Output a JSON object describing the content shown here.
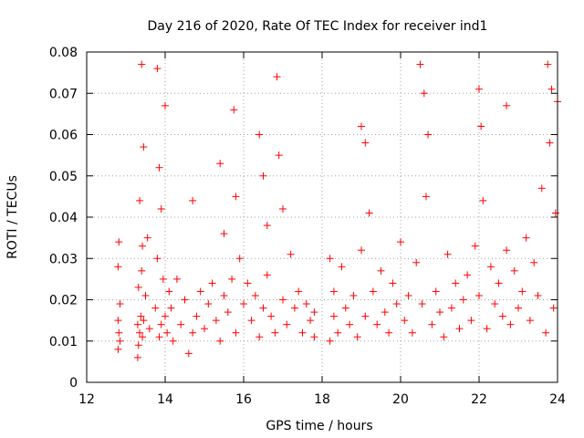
{
  "chart_data": {
    "type": "scatter",
    "title": "Day 216 of 2020, Rate Of TEC Index for receiver ind1",
    "xlabel": "GPS time / hours",
    "ylabel": "ROTI / TECUs",
    "xlim": [
      12,
      24
    ],
    "ylim": [
      0,
      0.08
    ],
    "xticks": [
      "12",
      "14",
      "16",
      "18",
      "20",
      "22",
      "24"
    ],
    "yticks": [
      "0",
      "0.01",
      "0.02",
      "0.03",
      "0.04",
      "0.05",
      "0.06",
      "0.07",
      "0.08"
    ],
    "grid": true,
    "marker": "+",
    "colors": {
      "points": "#ff0000"
    },
    "series": [
      {
        "x": [
          12.8,
          12.8,
          12.8,
          12.82,
          12.82,
          12.85,
          12.85,
          13.3,
          13.3,
          13.32,
          13.32,
          13.35,
          13.35,
          13.38,
          13.4,
          13.4,
          13.42,
          13.42,
          13.45,
          13.45,
          13.5,
          13.55,
          13.6,
          13.75,
          13.8,
          13.8,
          13.85,
          13.85,
          13.9,
          13.9,
          13.95,
          14.0,
          14.0,
          14.05,
          14.1,
          14.15,
          14.2,
          14.3,
          14.4,
          14.5,
          14.6,
          14.7,
          14.7,
          14.8,
          14.9,
          15.0,
          15.1,
          15.2,
          15.3,
          15.4,
          15.4,
          15.5,
          15.5,
          15.6,
          15.7,
          15.75,
          15.8,
          15.8,
          15.9,
          16.0,
          16.1,
          16.2,
          16.3,
          16.4,
          16.4,
          16.5,
          16.5,
          16.6,
          16.6,
          16.7,
          16.8,
          16.85,
          16.9,
          17.0,
          17.0,
          17.1,
          17.2,
          17.3,
          17.4,
          17.5,
          17.6,
          17.7,
          17.8,
          17.8,
          18.2,
          18.2,
          18.3,
          18.3,
          18.4,
          18.5,
          18.6,
          18.7,
          18.8,
          18.9,
          19.0,
          19.0,
          19.1,
          19.1,
          19.2,
          19.3,
          19.4,
          19.5,
          19.6,
          19.7,
          19.8,
          19.9,
          20.0,
          20.1,
          20.2,
          20.3,
          20.4,
          20.5,
          20.55,
          20.6,
          20.65,
          20.7,
          20.8,
          20.9,
          21.0,
          21.1,
          21.2,
          21.3,
          21.4,
          21.5,
          21.6,
          21.7,
          21.8,
          21.9,
          22.0,
          22.0,
          22.05,
          22.1,
          22.2,
          22.3,
          22.4,
          22.5,
          22.6,
          22.7,
          22.7,
          22.8,
          22.9,
          23.0,
          23.1,
          23.2,
          23.3,
          23.4,
          23.5,
          23.6,
          23.7,
          23.75,
          23.8,
          23.85,
          23.9,
          23.95,
          24.0
        ],
        "y": [
          0.008,
          0.015,
          0.028,
          0.012,
          0.034,
          0.01,
          0.019,
          0.006,
          0.014,
          0.009,
          0.023,
          0.012,
          0.044,
          0.016,
          0.077,
          0.027,
          0.011,
          0.033,
          0.015,
          0.057,
          0.021,
          0.035,
          0.013,
          0.018,
          0.076,
          0.03,
          0.011,
          0.052,
          0.014,
          0.042,
          0.025,
          0.067,
          0.016,
          0.012,
          0.022,
          0.018,
          0.01,
          0.025,
          0.014,
          0.02,
          0.007,
          0.012,
          0.044,
          0.016,
          0.022,
          0.013,
          0.019,
          0.024,
          0.015,
          0.01,
          0.053,
          0.021,
          0.036,
          0.017,
          0.025,
          0.066,
          0.012,
          0.045,
          0.03,
          0.019,
          0.024,
          0.015,
          0.021,
          0.011,
          0.06,
          0.018,
          0.05,
          0.026,
          0.038,
          0.016,
          0.012,
          0.074,
          0.055,
          0.02,
          0.042,
          0.014,
          0.031,
          0.018,
          0.022,
          0.012,
          0.019,
          0.015,
          0.011,
          0.017,
          0.01,
          0.03,
          0.016,
          0.022,
          0.012,
          0.028,
          0.018,
          0.014,
          0.021,
          0.011,
          0.032,
          0.062,
          0.016,
          0.058,
          0.041,
          0.022,
          0.014,
          0.027,
          0.017,
          0.012,
          0.024,
          0.019,
          0.034,
          0.015,
          0.021,
          0.012,
          0.029,
          0.077,
          0.019,
          0.07,
          0.045,
          0.06,
          0.014,
          0.022,
          0.017,
          0.011,
          0.031,
          0.018,
          0.024,
          0.013,
          0.02,
          0.026,
          0.015,
          0.033,
          0.021,
          0.071,
          0.062,
          0.044,
          0.013,
          0.028,
          0.019,
          0.024,
          0.016,
          0.067,
          0.032,
          0.014,
          0.027,
          0.018,
          0.022,
          0.035,
          0.015,
          0.029,
          0.021,
          0.047,
          0.012,
          0.077,
          0.058,
          0.071,
          0.018,
          0.041,
          0.068
        ]
      }
    ]
  }
}
